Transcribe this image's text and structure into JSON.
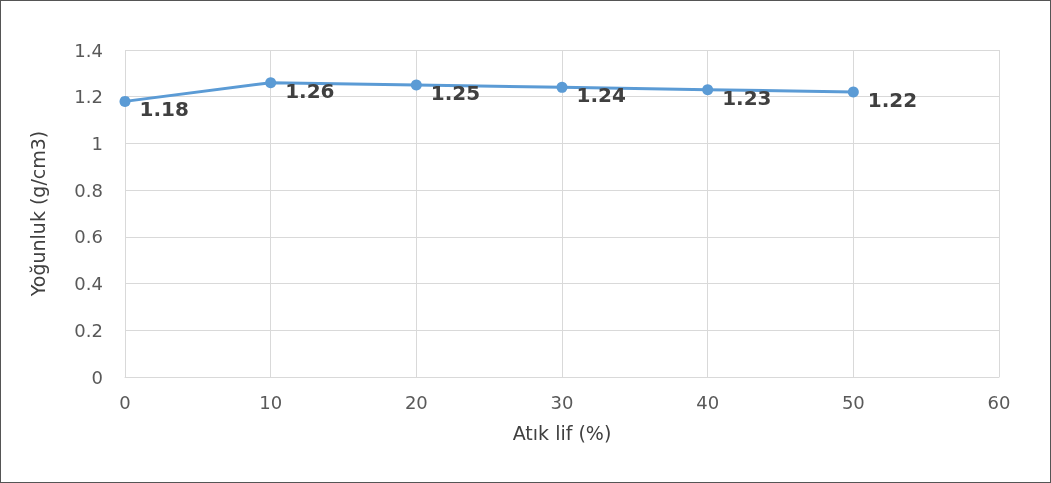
{
  "chart_data": {
    "type": "line",
    "xlabel": "Atık lif (%)",
    "ylabel": "Yoğunluk (g/cm3)",
    "x": [
      0,
      10,
      20,
      30,
      40,
      50
    ],
    "series": [
      {
        "color": "#5b9bd5",
        "values": [
          1.18,
          1.26,
          1.25,
          1.24,
          1.23,
          1.22
        ]
      }
    ],
    "xlim": [
      0,
      60
    ],
    "xticks": [
      0,
      10,
      20,
      30,
      40,
      50,
      60
    ],
    "ylim": [
      0,
      1.4
    ],
    "yticks": [
      0,
      0.2,
      0.4,
      0.6,
      0.8,
      1,
      1.2,
      1.4
    ],
    "grid": true,
    "marker": "circle",
    "line_style": "solid",
    "data_labels": true
  }
}
